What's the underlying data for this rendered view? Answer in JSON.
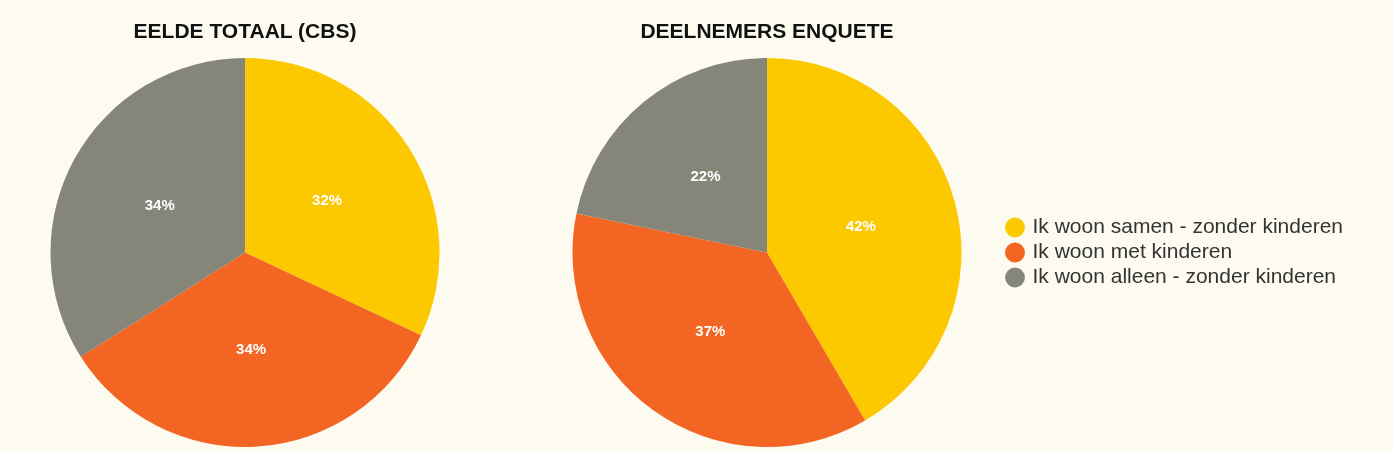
{
  "chart_data": [
    {
      "type": "pie",
      "title": "EELDE TOTAAL (CBS)",
      "categories": [
        null,
        null,
        null
      ],
      "values": [
        32,
        34,
        34
      ],
      "colors": [
        "#fcc800",
        "#f26522",
        "#85857a"
      ],
      "value_labels": [
        "32%",
        "34%",
        "34%"
      ],
      "legend": false
    },
    {
      "type": "pie",
      "title": "DEELNEMERS ENQUETE",
      "categories": [
        "Ik woon samen - zonder kinderen",
        "Ik woon met kinderen",
        "Ik woon alleen - zonder kinderen"
      ],
      "values": [
        42,
        37,
        22
      ],
      "colors": [
        "#fcc800",
        "#f26522",
        "#85857a"
      ],
      "value_labels": [
        "42%",
        "37%",
        "22%"
      ],
      "legend": "right"
    }
  ]
}
